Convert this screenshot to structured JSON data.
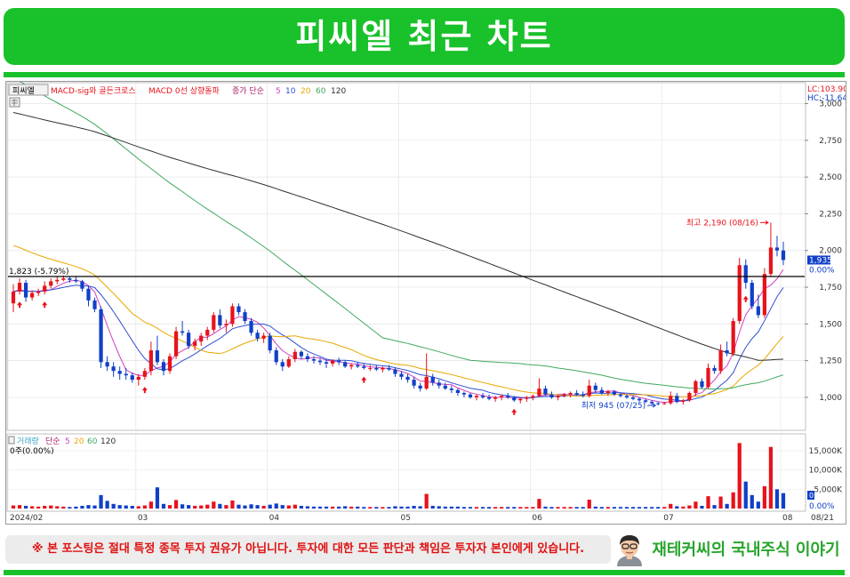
{
  "banner": {
    "title": "피씨엘 최근 차트"
  },
  "chart_data": {
    "type": "candlestick",
    "stock_name": "피씨엘",
    "legend": {
      "indicator1": "MACD-sig와 골든크로스",
      "indicator2": "MACD 0선 상향돌파",
      "ma_label": "종가 단순",
      "ma_periods": [
        "5",
        "10",
        "20",
        "60",
        "120"
      ]
    },
    "lc_label": "LC:103.90",
    "hc_label": "HC:-11.64",
    "price_axis": {
      "min": 800,
      "max": 3100,
      "ticks": [
        "3,000",
        "2,750",
        "2,500",
        "2,250",
        "2,000",
        "1,750",
        "1,500",
        "1,250",
        "1,000"
      ],
      "tick_values": [
        3000,
        2750,
        2500,
        2250,
        2000,
        1750,
        1500,
        1250,
        1000
      ]
    },
    "current_price_label": "1,935",
    "current_change_label": "0.00%",
    "reference_line": {
      "value": 1823,
      "label": "1,823 (-5.79%)"
    },
    "high_annotation": {
      "value": 2190,
      "label": "최고 2,190 (08/16)"
    },
    "low_annotation": {
      "value": 945,
      "label": "최저 945 (07/25)"
    },
    "x_labels": [
      "2024/02",
      "03",
      "04",
      "05",
      "06",
      "07",
      "08"
    ],
    "x_end_label": "08/21",
    "colors": {
      "up": "#e8121b",
      "down": "#1040c8",
      "ma5": "#d040c0",
      "ma10": "#3050d0",
      "ma20": "#e8a800",
      "ma60": "#40a860",
      "ma120": "#303030",
      "signal": "#e8121b"
    },
    "ohlc": [
      [
        1640,
        1770,
        1580,
        1720
      ],
      [
        1720,
        1810,
        1700,
        1780
      ],
      [
        1780,
        1800,
        1650,
        1680
      ],
      [
        1680,
        1730,
        1660,
        1710
      ],
      [
        1710,
        1740,
        1690,
        1720
      ],
      [
        1720,
        1790,
        1700,
        1760
      ],
      [
        1760,
        1810,
        1740,
        1790
      ],
      [
        1790,
        1820,
        1770,
        1800
      ],
      [
        1800,
        1830,
        1790,
        1810
      ],
      [
        1810,
        1820,
        1780,
        1800
      ],
      [
        1800,
        1820,
        1780,
        1790
      ],
      [
        1790,
        1800,
        1720,
        1740
      ],
      [
        1740,
        1760,
        1620,
        1660
      ],
      [
        1660,
        1680,
        1580,
        1600
      ],
      [
        1600,
        1620,
        1200,
        1240
      ],
      [
        1240,
        1280,
        1180,
        1210
      ],
      [
        1210,
        1240,
        1140,
        1180
      ],
      [
        1180,
        1210,
        1120,
        1160
      ],
      [
        1160,
        1200,
        1120,
        1150
      ],
      [
        1150,
        1170,
        1100,
        1120
      ],
      [
        1120,
        1160,
        1080,
        1140
      ],
      [
        1140,
        1200,
        1120,
        1180
      ],
      [
        1180,
        1380,
        1150,
        1320
      ],
      [
        1320,
        1420,
        1220,
        1240
      ],
      [
        1240,
        1260,
        1150,
        1180
      ],
      [
        1180,
        1300,
        1160,
        1280
      ],
      [
        1280,
        1480,
        1260,
        1450
      ],
      [
        1450,
        1520,
        1420,
        1440
      ],
      [
        1440,
        1460,
        1330,
        1350
      ],
      [
        1350,
        1400,
        1320,
        1380
      ],
      [
        1380,
        1440,
        1350,
        1420
      ],
      [
        1420,
        1480,
        1390,
        1460
      ],
      [
        1460,
        1580,
        1440,
        1560
      ],
      [
        1560,
        1600,
        1470,
        1490
      ],
      [
        1490,
        1530,
        1440,
        1500
      ],
      [
        1500,
        1640,
        1480,
        1620
      ],
      [
        1620,
        1640,
        1560,
        1580
      ],
      [
        1580,
        1600,
        1500,
        1520
      ],
      [
        1520,
        1540,
        1420,
        1440
      ],
      [
        1440,
        1460,
        1380,
        1400
      ],
      [
        1400,
        1440,
        1370,
        1420
      ],
      [
        1420,
        1440,
        1300,
        1320
      ],
      [
        1320,
        1340,
        1220,
        1240
      ],
      [
        1240,
        1260,
        1180,
        1210
      ],
      [
        1210,
        1280,
        1200,
        1260
      ],
      [
        1260,
        1330,
        1240,
        1310
      ],
      [
        1310,
        1320,
        1260,
        1280
      ],
      [
        1280,
        1300,
        1240,
        1260
      ],
      [
        1260,
        1280,
        1230,
        1250
      ],
      [
        1250,
        1270,
        1220,
        1240
      ],
      [
        1240,
        1260,
        1200,
        1230
      ],
      [
        1230,
        1260,
        1210,
        1250
      ],
      [
        1250,
        1270,
        1220,
        1240
      ],
      [
        1240,
        1250,
        1200,
        1210
      ],
      [
        1210,
        1230,
        1190,
        1220
      ],
      [
        1220,
        1240,
        1200,
        1210
      ],
      [
        1210,
        1230,
        1190,
        1200
      ],
      [
        1200,
        1220,
        1180,
        1200
      ],
      [
        1200,
        1220,
        1180,
        1190
      ],
      [
        1190,
        1210,
        1170,
        1200
      ],
      [
        1200,
        1220,
        1180,
        1190
      ],
      [
        1190,
        1200,
        1140,
        1160
      ],
      [
        1160,
        1180,
        1120,
        1140
      ],
      [
        1140,
        1160,
        1100,
        1120
      ],
      [
        1120,
        1140,
        1060,
        1080
      ],
      [
        1080,
        1100,
        1040,
        1060
      ],
      [
        1060,
        1300,
        1050,
        1140
      ],
      [
        1140,
        1160,
        1080,
        1100
      ],
      [
        1100,
        1120,
        1060,
        1080
      ],
      [
        1080,
        1100,
        1050,
        1060
      ],
      [
        1060,
        1080,
        1030,
        1050
      ],
      [
        1050,
        1060,
        1010,
        1030
      ],
      [
        1030,
        1040,
        1000,
        1020
      ],
      [
        1020,
        1030,
        990,
        1000
      ],
      [
        1000,
        1020,
        980,
        1010
      ],
      [
        1010,
        1030,
        990,
        1000
      ],
      [
        1000,
        1020,
        980,
        990
      ],
      [
        990,
        1010,
        970,
        1000
      ],
      [
        1000,
        1020,
        980,
        1010
      ],
      [
        1010,
        1030,
        990,
        1000
      ],
      [
        1000,
        1010,
        970,
        980
      ],
      [
        980,
        1000,
        960,
        990
      ],
      [
        990,
        1010,
        970,
        1000
      ],
      [
        1000,
        1020,
        980,
        1010
      ],
      [
        1010,
        1130,
        1000,
        1060
      ],
      [
        1060,
        1080,
        1010,
        1020
      ],
      [
        1020,
        1040,
        990,
        1000
      ],
      [
        1000,
        1020,
        980,
        1010
      ],
      [
        1010,
        1030,
        1000,
        1020
      ],
      [
        1020,
        1040,
        1000,
        1030
      ],
      [
        1030,
        1050,
        1010,
        1020
      ],
      [
        1020,
        1040,
        1000,
        1010
      ],
      [
        1010,
        1120,
        1000,
        1080
      ],
      [
        1080,
        1100,
        1030,
        1050
      ],
      [
        1050,
        1070,
        1020,
        1030
      ],
      [
        1030,
        1050,
        1010,
        1040
      ],
      [
        1040,
        1050,
        1010,
        1020
      ],
      [
        1020,
        1030,
        1000,
        1010
      ],
      [
        1010,
        1020,
        990,
        1000
      ],
      [
        1000,
        1010,
        980,
        990
      ],
      [
        990,
        1000,
        970,
        980
      ],
      [
        980,
        990,
        960,
        970
      ],
      [
        970,
        980,
        950,
        960
      ],
      [
        960,
        970,
        945,
        955
      ],
      [
        955,
        970,
        950,
        960
      ],
      [
        960,
        1040,
        950,
        1010
      ],
      [
        1010,
        1030,
        960,
        970
      ],
      [
        970,
        990,
        950,
        980
      ],
      [
        980,
        1040,
        970,
        1030
      ],
      [
        1030,
        1120,
        1010,
        1110
      ],
      [
        1110,
        1130,
        1060,
        1070
      ],
      [
        1070,
        1230,
        1060,
        1200
      ],
      [
        1200,
        1220,
        1160,
        1180
      ],
      [
        1180,
        1360,
        1160,
        1320
      ],
      [
        1320,
        1380,
        1280,
        1300
      ],
      [
        1300,
        1540,
        1280,
        1520
      ],
      [
        1520,
        1950,
        1500,
        1900
      ],
      [
        1900,
        1940,
        1740,
        1780
      ],
      [
        1780,
        1800,
        1600,
        1620
      ],
      [
        1620,
        1700,
        1540,
        1560
      ],
      [
        1560,
        1880,
        1540,
        1840
      ],
      [
        1840,
        2190,
        1820,
        2020
      ],
      [
        2020,
        2100,
        1960,
        2000
      ],
      [
        2000,
        2060,
        1900,
        1935
      ]
    ],
    "volume_axis": {
      "max": 18000,
      "ticks": [
        "15,000K",
        "10,000K",
        "5,000K"
      ],
      "tick_values": [
        15000,
        10000,
        5000
      ]
    },
    "volume_legend": {
      "label": "거래량",
      "ma_label": "단순",
      "ma_periods": [
        "5",
        "20",
        "60",
        "120"
      ]
    },
    "volume_current_label": "0주(0.00%)",
    "volume_scale_zero": "0",
    "volume_scale_pct": "0.00%",
    "volume": [
      800,
      900,
      700,
      600,
      500,
      700,
      800,
      600,
      500,
      400,
      500,
      700,
      900,
      800,
      3500,
      2000,
      1200,
      900,
      800,
      700,
      600,
      800,
      1800,
      5500,
      1200,
      900,
      2200,
      1100,
      900,
      700,
      800,
      1000,
      1800,
      1200,
      900,
      2100,
      1000,
      800,
      1100,
      900,
      700,
      1000,
      1300,
      900,
      800,
      1000,
      700,
      600,
      500,
      500,
      500,
      500,
      500,
      600,
      500,
      500,
      400,
      400,
      400,
      400,
      400,
      600,
      500,
      500,
      700,
      600,
      3800,
      700,
      600,
      500,
      500,
      500,
      400,
      400,
      400,
      400,
      400,
      400,
      400,
      400,
      400,
      400,
      400,
      400,
      2500,
      500,
      400,
      400,
      400,
      400,
      400,
      400,
      2300,
      500,
      400,
      400,
      400,
      400,
      400,
      400,
      400,
      400,
      400,
      400,
      400,
      1200,
      600,
      500,
      800,
      1800,
      700,
      3200,
      900,
      3100,
      1200,
      4200,
      17000,
      7000,
      3500,
      1800,
      5800,
      16000,
      5000,
      4000
    ]
  },
  "disclaimer": "※ 본 포스팅은 절대 특정 종목 투자 권유가 아닙니다. 투자에 대한 모든 판단과 책임은 투자자 본인에게 있습니다.",
  "brand": "재테커씨의 국내주식 이야기"
}
